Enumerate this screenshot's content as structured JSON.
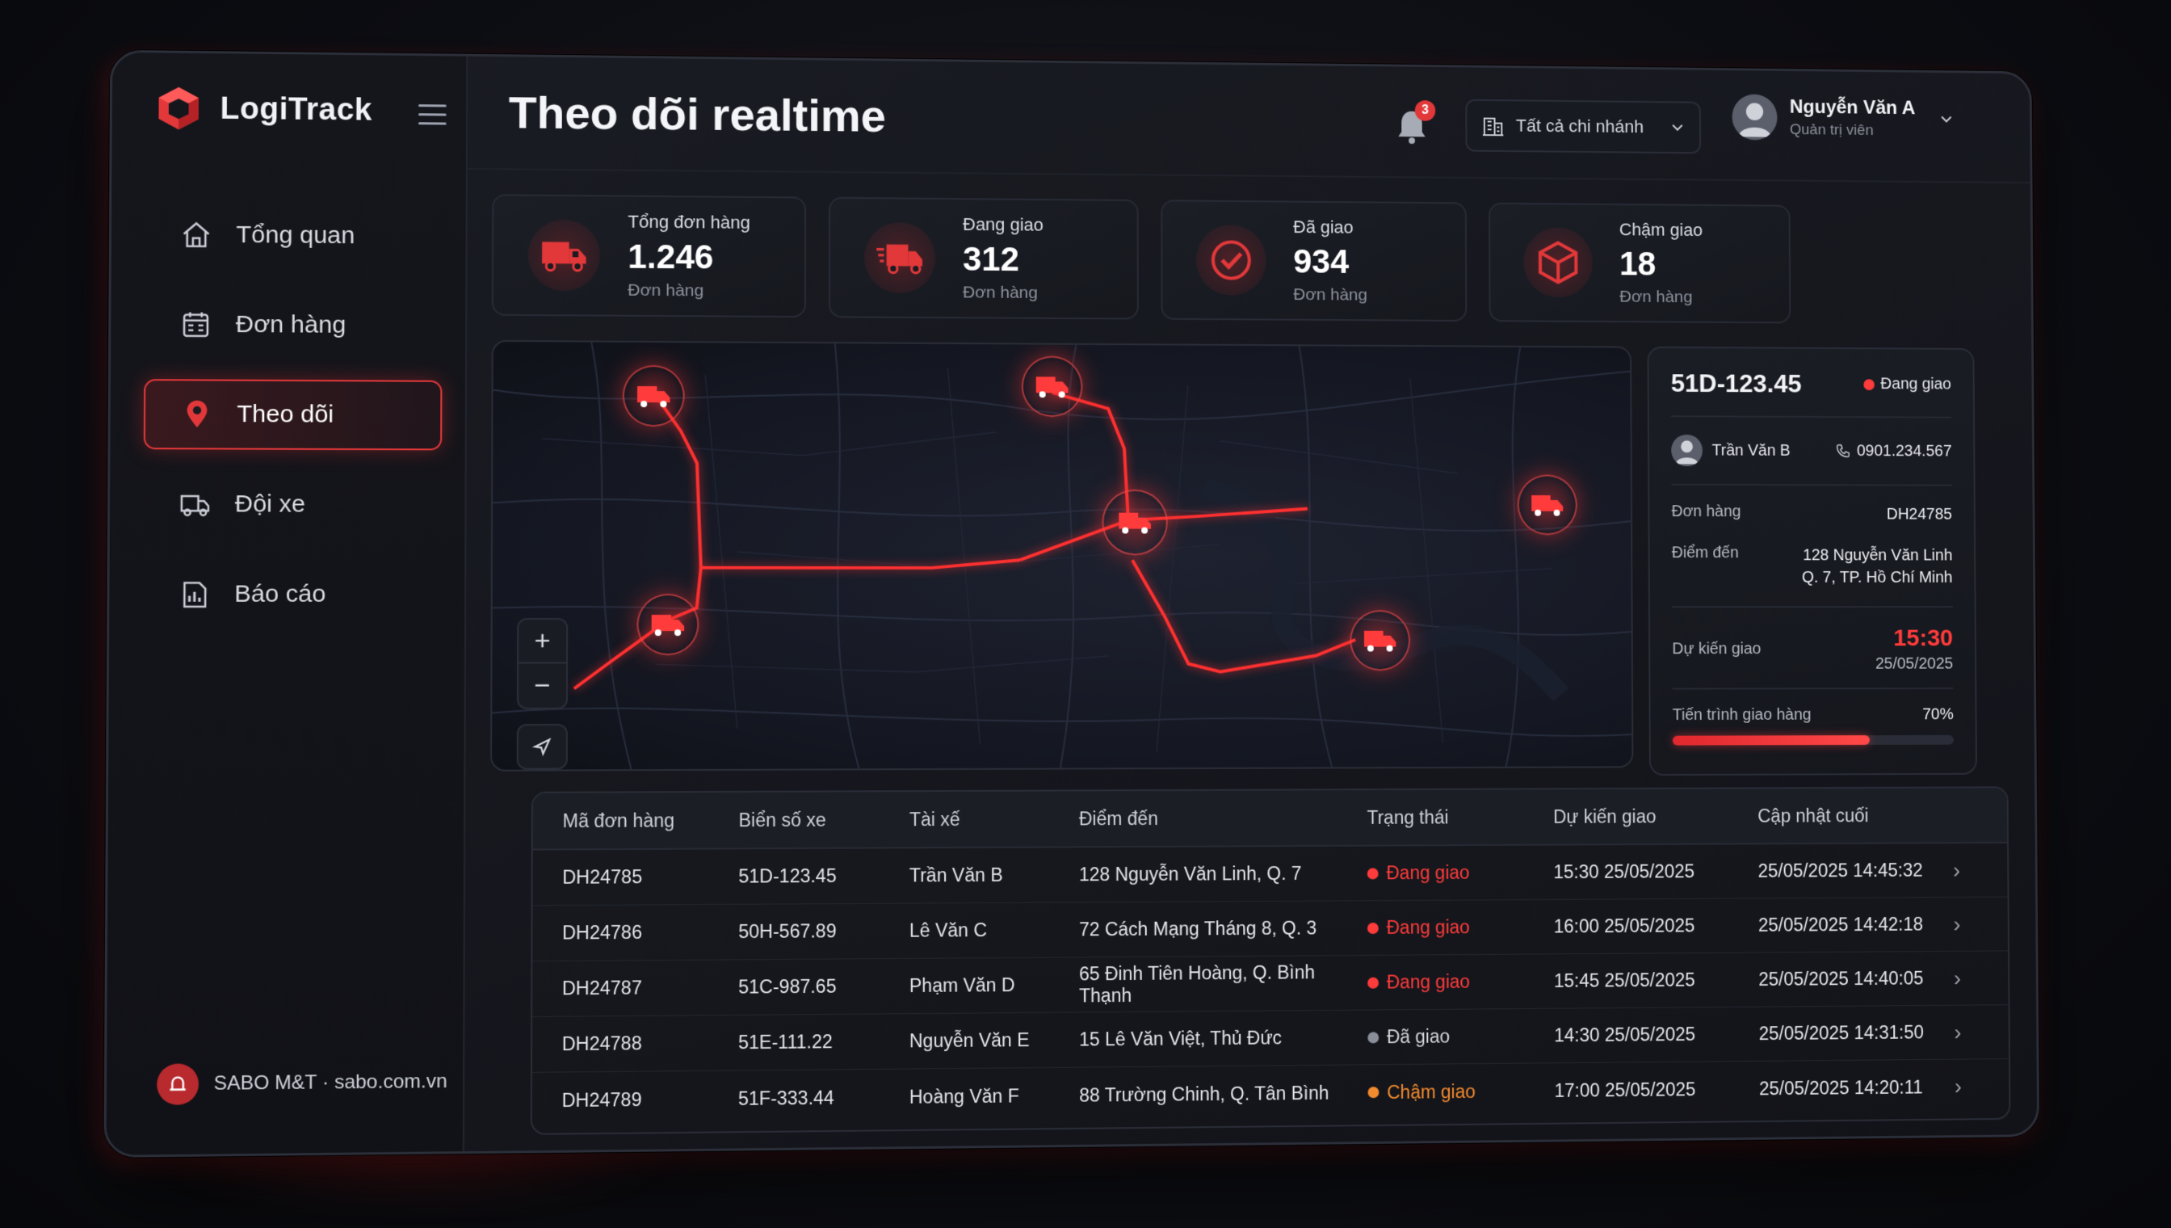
{
  "brand": {
    "name": "LogiTrack"
  },
  "colors": {
    "accent": "#e2383a",
    "delivering": "#ff3b3b",
    "delivered": "#8a8e99",
    "late": "#f28a2e"
  },
  "sidebar": {
    "items": [
      {
        "label": "Tổng quan",
        "icon": "home-icon"
      },
      {
        "label": "Đơn hàng",
        "icon": "orders-icon"
      },
      {
        "label": "Theo dõi",
        "icon": "location-pin-icon",
        "active": true
      },
      {
        "label": "Đội xe",
        "icon": "truck-icon"
      },
      {
        "label": "Báo cáo",
        "icon": "report-icon"
      }
    ],
    "footer": "SABO M&T · sabo.com.vn"
  },
  "header": {
    "title": "Theo dõi realtime",
    "notification_count": "3",
    "branch_select": "Tất cả chi nhánh",
    "user": {
      "name": "Nguyễn Văn A",
      "role": "Quản trị viên"
    }
  },
  "stats": [
    {
      "label": "Tổng đơn hàng",
      "value": "1.246",
      "unit": "Đơn hàng"
    },
    {
      "label": "Đang giao",
      "value": "312",
      "unit": "Đơn hàng"
    },
    {
      "label": "Đã giao",
      "value": "934",
      "unit": "Đơn hàng"
    },
    {
      "label": "Chậm giao",
      "value": "18",
      "unit": "Đơn hàng"
    }
  ],
  "map": {
    "zoom_in": "+",
    "zoom_out": "−"
  },
  "detail": {
    "plate": "51D-123.45",
    "status": "Đang giao",
    "driver": "Trần Văn B",
    "phone": "0901.234.567",
    "order_label": "Đơn hàng",
    "order_value": "DH24785",
    "dest_label": "Điểm đến",
    "dest_line1": "128 Nguyễn Văn Linh",
    "dest_line2": "Q. 7, TP. Hồ Chí Minh",
    "eta_label": "Dự kiến giao",
    "eta_time": "15:30",
    "eta_date": "25/05/2025",
    "progress_label": "Tiến trình giao hàng",
    "progress_text": "70%",
    "progress": 0.7
  },
  "table": {
    "headers": [
      "Mã đơn hàng",
      "Biển số xe",
      "Tài xế",
      "Điểm đến",
      "Trạng thái",
      "Dự kiến giao",
      "Cập nhật cuối"
    ],
    "rows": [
      {
        "id": "DH24785",
        "plate": "51D-123.45",
        "driver": "Trần Văn B",
        "dest": "128 Nguyễn Văn Linh, Q. 7",
        "status": "Đang giao",
        "status_color": "#ff3b3b",
        "eta": "15:30 25/05/2025",
        "updated": "25/05/2025 14:45:32"
      },
      {
        "id": "DH24786",
        "plate": "50H-567.89",
        "driver": "Lê Văn C",
        "dest": "72 Cách Mạng Tháng 8, Q. 3",
        "status": "Đang giao",
        "status_color": "#ff3b3b",
        "eta": "16:00 25/05/2025",
        "updated": "25/05/2025 14:42:18"
      },
      {
        "id": "DH24787",
        "plate": "51C-987.65",
        "driver": "Phạm Văn D",
        "dest": "65 Đinh Tiên Hoàng, Q. Bình Thạnh",
        "status": "Đang giao",
        "status_color": "#ff3b3b",
        "eta": "15:45 25/05/2025",
        "updated": "25/05/2025 14:40:05"
      },
      {
        "id": "DH24788",
        "plate": "51E-111.22",
        "driver": "Nguyễn Văn E",
        "dest": "15 Lê Văn Việt, Thủ Đức",
        "status": "Đã giao",
        "status_color": "#8a8e99",
        "eta": "14:30 25/05/2025",
        "updated": "25/05/2025 14:31:50"
      },
      {
        "id": "DH24789",
        "plate": "51F-333.44",
        "driver": "Hoàng Văn F",
        "dest": "88 Trường Chinh, Q. Tân Bình",
        "status": "Chậm giao",
        "status_color": "#f28a2e",
        "eta": "17:00 25/05/2025",
        "updated": "25/05/2025 14:20:11"
      }
    ]
  }
}
